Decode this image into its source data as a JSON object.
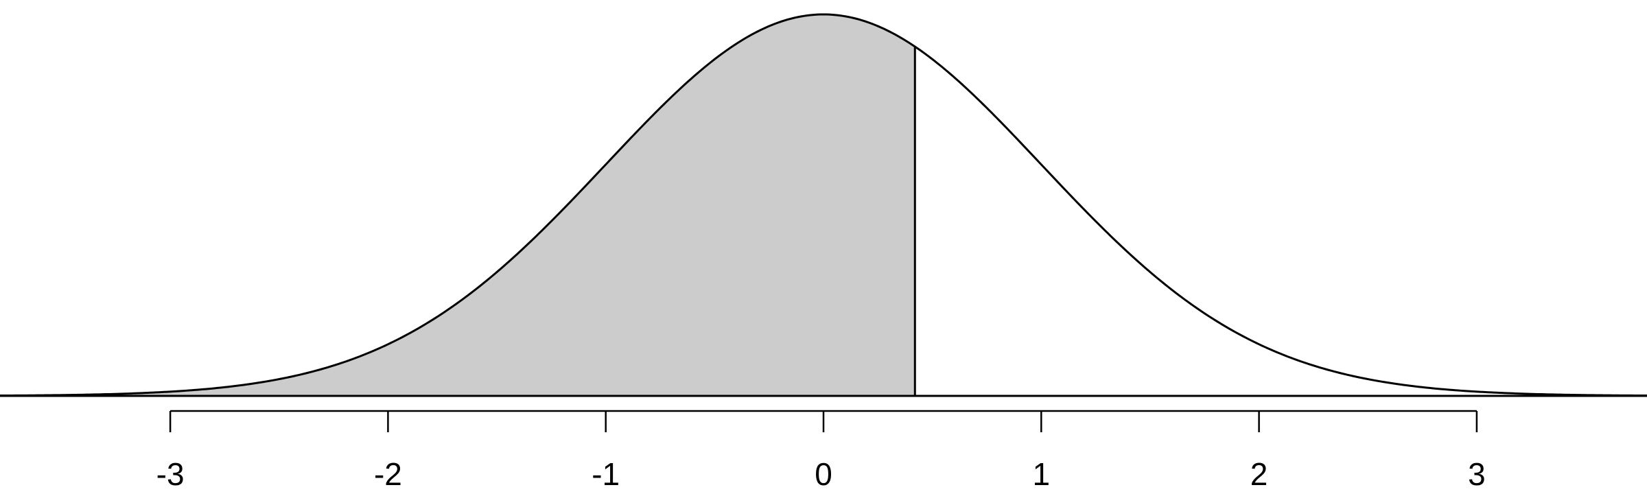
{
  "chart_data": {
    "type": "area",
    "distribution": "standard normal density",
    "mean": 0,
    "sd": 1,
    "shaded_region": {
      "from": -3.8,
      "to": 0.42
    },
    "xlim": [
      -3.8,
      3.8
    ],
    "ylim": [
      0,
      0.4
    ],
    "x_ticks": [
      -3,
      -2,
      -1,
      0,
      1,
      2,
      3
    ],
    "x_tick_labels": [
      "-3",
      "-2",
      "-1",
      "0",
      "1",
      "2",
      "3"
    ],
    "colors": {
      "shade": "#cccccc",
      "line": "#000000",
      "background": "#ffffff"
    },
    "grid": false,
    "legend": "none",
    "title": "",
    "xlabel": "",
    "ylabel": ""
  }
}
